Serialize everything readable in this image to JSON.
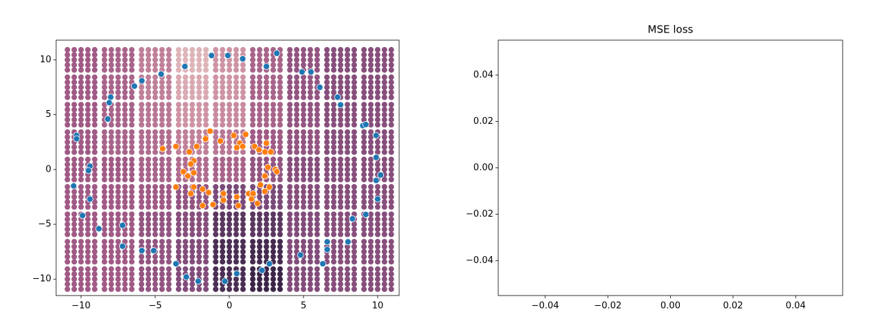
{
  "chart_data": [
    {
      "type": "scatter",
      "xlim": [
        -11.68,
        11.45
      ],
      "ylim": [
        -11.5,
        11.8
      ],
      "xticks": [
        {
          "value": -10,
          "label": "−10"
        },
        {
          "value": -5,
          "label": "−5"
        },
        0,
        5,
        10
      ],
      "yticks": [
        {
          "value": -10,
          "label": "−10"
        },
        {
          "value": -5,
          "label": "−5"
        },
        0,
        5,
        10
      ],
      "surface": {
        "x": [
          -10,
          -7.5,
          -5,
          -2.5,
          0,
          2.5,
          5,
          7.5,
          10
        ],
        "y": [
          10,
          7.5,
          5,
          2.5,
          0,
          -2.5,
          -5,
          -7.5,
          -10
        ],
        "z": [
          [
            0.6,
            0.55,
            0.4,
            0.15,
            0.3,
            0.55,
            0.65,
            0.7,
            0.7
          ],
          [
            0.6,
            0.55,
            0.4,
            0.2,
            0.3,
            0.55,
            0.65,
            0.7,
            0.7
          ],
          [
            0.6,
            0.55,
            0.45,
            0.3,
            0.35,
            0.55,
            0.65,
            0.7,
            0.7
          ],
          [
            0.6,
            0.55,
            0.5,
            0.4,
            0.45,
            0.6,
            0.65,
            0.7,
            0.7
          ],
          [
            0.6,
            0.6,
            0.55,
            0.5,
            0.55,
            0.65,
            0.7,
            0.7,
            0.7
          ],
          [
            0.6,
            0.6,
            0.6,
            0.65,
            0.75,
            0.75,
            0.7,
            0.7,
            0.7
          ],
          [
            0.6,
            0.6,
            0.65,
            0.7,
            0.85,
            0.85,
            0.72,
            0.7,
            0.7
          ],
          [
            0.6,
            0.6,
            0.65,
            0.72,
            0.9,
            0.92,
            0.72,
            0.7,
            0.7
          ],
          [
            0.6,
            0.6,
            0.65,
            0.72,
            0.9,
            0.95,
            0.72,
            0.7,
            0.7
          ]
        ]
      },
      "series": [
        {
          "color": "#1f77b4",
          "x": [
            -1.2,
            -0.1,
            3.2,
            0.9,
            -3.0,
            2.5,
            -4.6,
            4.9,
            5.5,
            -5.9,
            -6.4,
            6.1,
            -8.0,
            -8.1,
            7.3,
            7.5,
            -8.2,
            9.0,
            9.2,
            -10.3,
            -10.3,
            9.9,
            9.9,
            -9.4,
            -9.5,
            -10.5,
            10.2,
            9.9,
            -9.4,
            10.0,
            -9.9,
            9.2,
            8.3,
            -8.8,
            -7.2,
            6.6,
            8.0,
            -7.2,
            -5.9,
            -5.1,
            6.6,
            4.8,
            -3.6,
            6.3,
            2.7,
            2.2,
            0.5,
            -2.9,
            -2.1,
            -0.3
          ],
          "y": [
            10.4,
            10.4,
            10.6,
            10.1,
            9.4,
            9.4,
            8.7,
            8.9,
            8.9,
            8.1,
            7.6,
            7.5,
            6.6,
            6.1,
            6.6,
            5.9,
            4.6,
            4.0,
            4.1,
            3.1,
            2.8,
            3.1,
            1.1,
            0.3,
            -0.1,
            -1.5,
            -0.5,
            -1.0,
            -2.7,
            -2.7,
            -4.2,
            -4.1,
            -4.5,
            -5.4,
            -5.1,
            -6.6,
            -6.6,
            -7.0,
            -7.4,
            -7.4,
            -7.3,
            -7.8,
            -8.6,
            -8.6,
            -8.6,
            -9.2,
            -9.5,
            -9.8,
            -10.2,
            -10.2
          ]
        },
        {
          "color": "#ff7f0e",
          "x": [
            -1.3,
            0.3,
            1.1,
            -1.6,
            -0.6,
            0.7,
            2.5,
            -4.5,
            -3.6,
            -2.2,
            0.5,
            0.9,
            1.7,
            2.0,
            2.4,
            2.8,
            -2.7,
            -2.4,
            -2.6,
            2.6,
            3.1,
            3.2,
            -3.1,
            -2.4,
            -2.8,
            2.4,
            -3.6,
            -2.4,
            2.7,
            -1.8,
            -1.4,
            2.1,
            2.4,
            1.3,
            1.6,
            -0.4,
            -2.6,
            0.5,
            1.5,
            -0.4,
            -1.8,
            -1.1,
            0.6,
            1.9
          ],
          "y": [
            3.5,
            3.1,
            3.2,
            2.8,
            2.6,
            2.4,
            2.4,
            1.9,
            2.1,
            2.1,
            2.0,
            2.1,
            2.1,
            1.8,
            1.6,
            1.6,
            1.6,
            0.8,
            0.5,
            0.2,
            0.0,
            -0.2,
            -0.2,
            -0.3,
            -0.6,
            -0.6,
            -1.6,
            -1.6,
            -1.6,
            -1.8,
            -2.1,
            -1.4,
            -2.0,
            -2.2,
            -2.2,
            -2.2,
            -2.2,
            -2.5,
            -2.7,
            -2.8,
            -3.3,
            -3.2,
            -3.3,
            -3.1
          ]
        }
      ]
    },
    {
      "type": "line",
      "title": "MSE loss",
      "xlim": [
        -0.055,
        0.055
      ],
      "ylim": [
        -0.055,
        0.055
      ],
      "xticks": [
        {
          "value": -0.04,
          "label": "−0.04"
        },
        {
          "value": -0.02,
          "label": "−0.02"
        },
        {
          "value": 0,
          "label": "0.00"
        },
        {
          "value": 0.02,
          "label": "0.02"
        },
        {
          "value": 0.04,
          "label": "0.04"
        }
      ],
      "yticks": [
        {
          "value": -0.04,
          "label": "−0.04"
        },
        {
          "value": -0.02,
          "label": "−0.02"
        },
        {
          "value": 0,
          "label": "0.00"
        },
        {
          "value": 0.02,
          "label": "0.02"
        },
        {
          "value": 0.04,
          "label": "0.04"
        }
      ],
      "series": []
    }
  ]
}
